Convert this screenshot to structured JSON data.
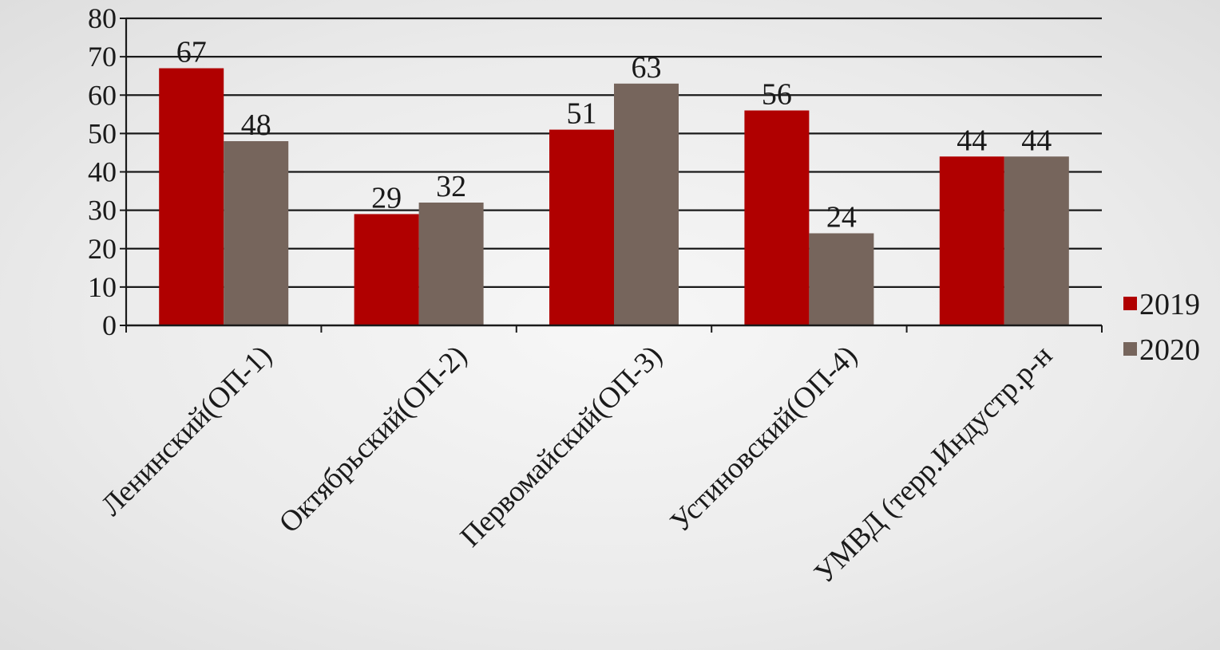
{
  "colors": {
    "series_2019": "#b00000",
    "series_2020": "#76655c",
    "gridline": "#1a1a1a",
    "text": "#1a1a1a"
  },
  "chart_data": {
    "type": "bar",
    "title": "",
    "xlabel": "",
    "ylabel": "",
    "categories": [
      "Ленинский(ОП-1)",
      "Октябрьский(ОП-2)",
      "Первомайский(ОП-3)",
      "Устиновский(ОП-4)",
      "УМВД (терр.Индустр.р-н"
    ],
    "series": [
      {
        "name": "2019",
        "values": [
          67,
          29,
          51,
          56,
          44
        ]
      },
      {
        "name": "2020",
        "values": [
          48,
          32,
          63,
          24,
          44
        ]
      }
    ],
    "ylim": [
      0,
      80
    ],
    "yticks": [
      0,
      10,
      20,
      30,
      40,
      50,
      60,
      70,
      80
    ],
    "grid": true,
    "data_labels": true,
    "legend_position": "right"
  }
}
